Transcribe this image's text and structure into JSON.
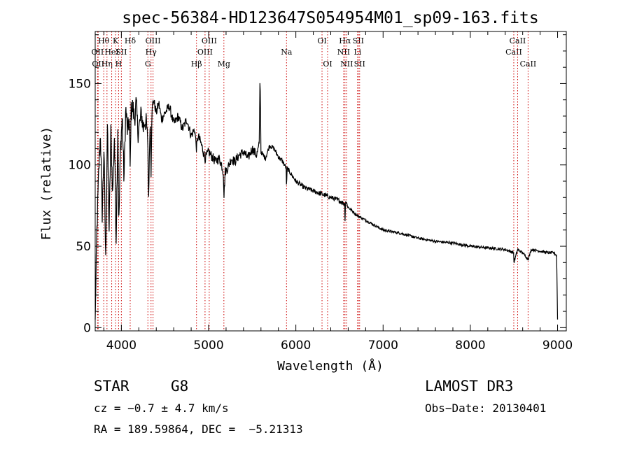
{
  "chart_data": {
    "type": "line",
    "title": "spec-56384-HD123647S054954M01_sp09-163.fits",
    "xlabel": "Wavelength (Å)",
    "ylabel": "Flux (relative)",
    "xlim": [
      3700,
      9100
    ],
    "ylim": [
      -2,
      182
    ],
    "xticks": [
      4000,
      5000,
      6000,
      7000,
      8000,
      9000
    ],
    "yticks": [
      0,
      50,
      100,
      150
    ],
    "series": [
      {
        "name": "flux",
        "x": [
          3700,
          3720,
          3740,
          3760,
          3780,
          3800,
          3820,
          3840,
          3860,
          3880,
          3900,
          3920,
          3940,
          3960,
          3970,
          3990,
          4010,
          4030,
          4050,
          4070,
          4090,
          4101,
          4110,
          4130,
          4150,
          4170,
          4190,
          4210,
          4230,
          4250,
          4270,
          4290,
          4305,
          4310,
          4330,
          4340,
          4350,
          4370,
          4400,
          4430,
          4460,
          4500,
          4550,
          4600,
          4650,
          4700,
          4750,
          4800,
          4840,
          4861,
          4880,
          4920,
          4960,
          5000,
          5040,
          5080,
          5120,
          5150,
          5170,
          5175,
          5190,
          5220,
          5260,
          5300,
          5350,
          5400,
          5450,
          5500,
          5550,
          5580,
          5590,
          5600,
          5650,
          5700,
          5750,
          5800,
          5850,
          5890,
          5893,
          5900,
          5950,
          6000,
          6100,
          6200,
          6300,
          6400,
          6500,
          6560,
          6563,
          6570,
          6600,
          6700,
          6800,
          6900,
          7000,
          7200,
          7400,
          7600,
          7800,
          8000,
          8200,
          8400,
          8498,
          8500,
          8542,
          8600,
          8662,
          8700,
          8800,
          8900,
          8960,
          8990,
          9000
        ],
        "values": [
          5,
          60,
          95,
          120,
          70,
          110,
          40,
          125,
          60,
          120,
          82,
          118,
          55,
          125,
          60,
          110,
          130,
          90,
          135,
          120,
          128,
          95,
          132,
          136,
          128,
          138,
          120,
          125,
          132,
          122,
          128,
          124,
          110,
          75,
          130,
          95,
          135,
          140,
          132,
          138,
          128,
          132,
          136,
          125,
          130,
          122,
          128,
          118,
          122,
          110,
          118,
          112,
          104,
          108,
          105,
          102,
          104,
          100,
          95,
          80,
          96,
          98,
          104,
          102,
          106,
          108,
          104,
          110,
          106,
          112,
          158,
          108,
          104,
          112,
          110,
          105,
          102,
          98,
          84,
          98,
          94,
          90,
          86,
          84,
          82,
          80,
          78,
          76,
          65,
          78,
          74,
          69,
          66,
          63,
          60,
          58,
          55,
          53,
          52,
          50,
          49,
          48,
          46,
          40,
          48,
          46,
          42,
          48,
          47,
          46,
          46,
          44,
          5
        ]
      }
    ],
    "spectral_lines": [
      {
        "wavelength": 3727,
        "label": "OII",
        "row": 2
      },
      {
        "wavelength": 3734,
        "label": "OII",
        "row": 3
      },
      {
        "wavelength": 3798,
        "label": "Hθ",
        "row": 1
      },
      {
        "wavelength": 3835,
        "label": "Hη",
        "row": 3
      },
      {
        "wavelength": 3889,
        "label": "HeI",
        "row": 2
      },
      {
        "wavelength": 3934,
        "label": "K",
        "row": 1
      },
      {
        "wavelength": 3968,
        "label": "H",
        "row": 3
      },
      {
        "wavelength": 4000,
        "label": "SII",
        "row": 2
      },
      {
        "wavelength": 4101,
        "label": "Hδ",
        "row": 1
      },
      {
        "wavelength": 4304,
        "label": "G",
        "row": 3
      },
      {
        "wavelength": 4340,
        "label": "Hγ",
        "row": 2
      },
      {
        "wavelength": 4363,
        "label": "OIII",
        "row": 1
      },
      {
        "wavelength": 4861,
        "label": "Hβ",
        "row": 3
      },
      {
        "wavelength": 4959,
        "label": "OIII",
        "row": 2
      },
      {
        "wavelength": 5007,
        "label": "OIII",
        "row": 1
      },
      {
        "wavelength": 5175,
        "label": "Mg",
        "row": 3
      },
      {
        "wavelength": 5893,
        "label": "Na",
        "row": 2
      },
      {
        "wavelength": 6300,
        "label": "OI",
        "row": 1
      },
      {
        "wavelength": 6364,
        "label": "OI",
        "row": 3
      },
      {
        "wavelength": 6548,
        "label": "NII",
        "row": 2
      },
      {
        "wavelength": 6563,
        "label": "Hα",
        "row": 1
      },
      {
        "wavelength": 6583,
        "label": "NII",
        "row": 3
      },
      {
        "wavelength": 6708,
        "label": "Li",
        "row": 2
      },
      {
        "wavelength": 6716,
        "label": "SII",
        "row": 1
      },
      {
        "wavelength": 6731,
        "label": "SII",
        "row": 3
      },
      {
        "wavelength": 8498,
        "label": "CaII",
        "row": 2
      },
      {
        "wavelength": 8542,
        "label": "CaII",
        "row": 1
      },
      {
        "wavelength": 8662,
        "label": "CaII",
        "row": 3
      }
    ]
  },
  "info": {
    "class_label": "STAR",
    "subclass": "G8",
    "survey": "LAMOST DR3",
    "cz": "cz = −0.7 ± 4.7 km/s",
    "obs_date": "Obs−Date: 20130401",
    "coords": "RA = 189.59864, DEC =  −5.21313"
  }
}
